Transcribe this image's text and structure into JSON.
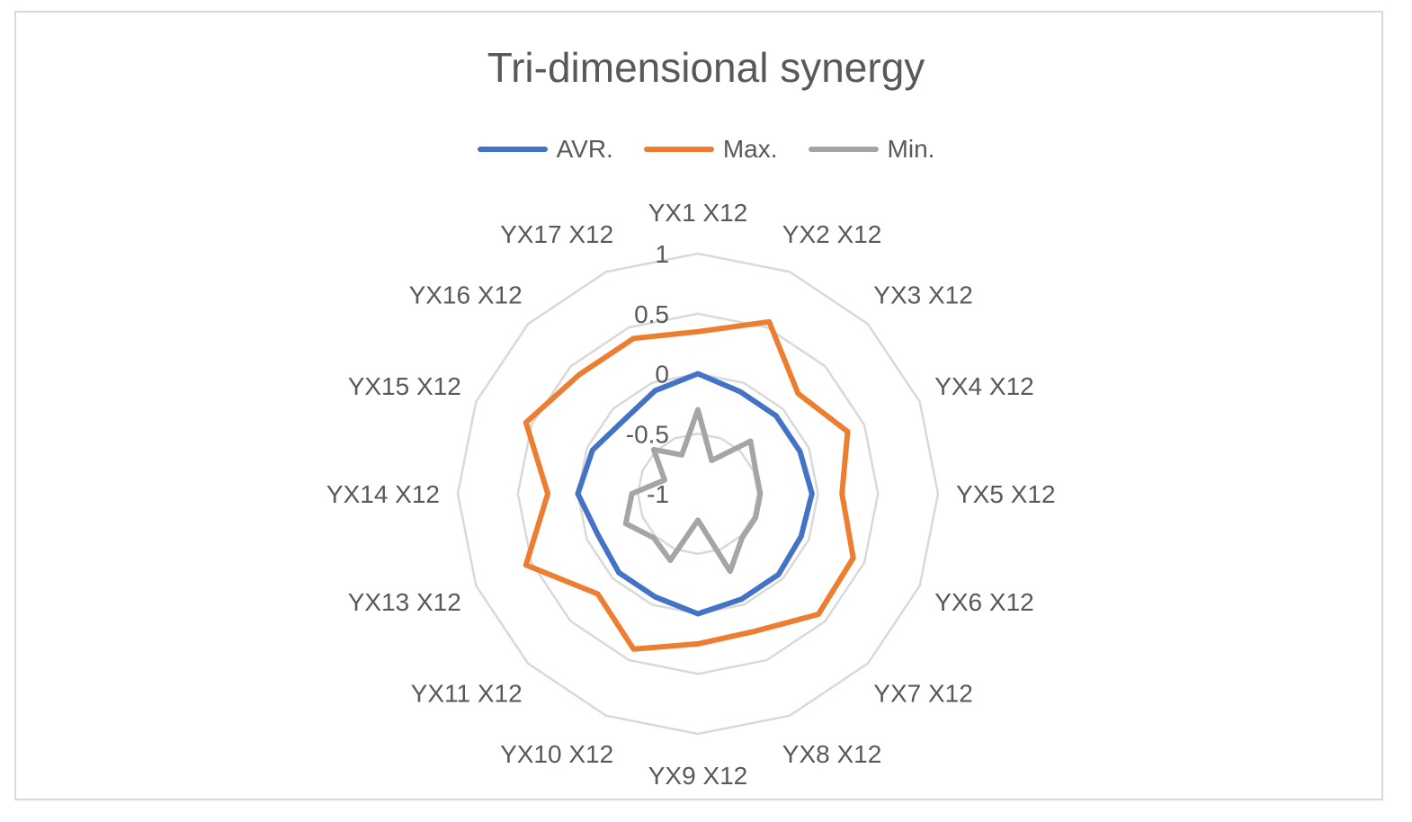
{
  "chart_data": {
    "type": "radar",
    "title": "Tri-dimensional synergy",
    "categories": [
      "YX1 X12",
      "YX2 X12",
      "YX3 X12",
      "YX4 X12",
      "YX5 X12",
      "YX6 X12",
      "YX7 X12",
      "YX8 X12",
      "YX9 X12",
      "YX10 X12",
      "YX11 X12",
      "YX13 X12",
      "YX14 X12",
      "YX15 X12",
      "YX16 X12",
      "YX17 X12"
    ],
    "rlim": [
      -1,
      1
    ],
    "ticks": [
      -1,
      -0.5,
      0,
      0.5,
      1
    ],
    "tick_labels": [
      "-1",
      "-0.5",
      "0",
      "0.5",
      "1"
    ],
    "legend_position": "top",
    "grid": true,
    "series": [
      {
        "name": "AVR.",
        "color": "#4472c4",
        "values": [
          0.0,
          -0.08,
          -0.08,
          -0.08,
          -0.05,
          -0.07,
          -0.05,
          -0.05,
          0.0,
          -0.07,
          -0.07,
          -0.1,
          0.0,
          -0.05,
          -0.13,
          -0.07
        ]
      },
      {
        "name": "Max.",
        "color": "#ed7d31",
        "values": [
          0.35,
          0.55,
          0.18,
          0.35,
          0.2,
          0.4,
          0.42,
          0.24,
          0.25,
          0.4,
          0.18,
          0.55,
          0.25,
          0.55,
          0.4,
          0.4
        ]
      },
      {
        "name": "Min.",
        "color": "#a5a5a5",
        "values": [
          -0.3,
          -0.7,
          -0.38,
          -0.48,
          -0.48,
          -0.48,
          -0.48,
          -0.3,
          -0.78,
          -0.4,
          -0.48,
          -0.35,
          -0.45,
          -0.7,
          -0.48,
          -0.65
        ]
      }
    ]
  }
}
